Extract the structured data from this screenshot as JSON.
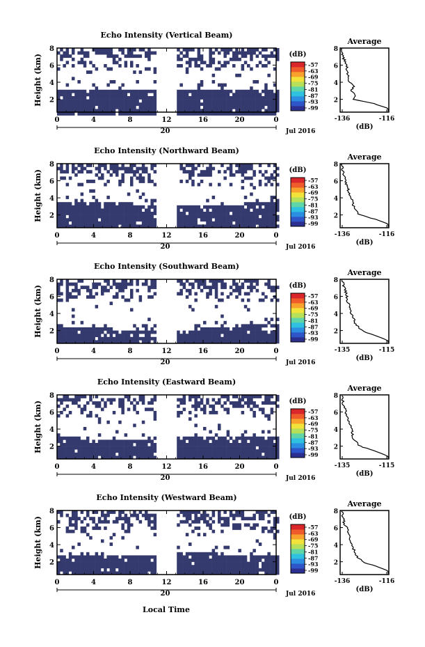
{
  "figure": {
    "xlabel_bottom": "Local Time",
    "date_label": "Jul 2016",
    "day_label": "20",
    "colorbar_unit": "(dB)",
    "colorbar_ticks": [
      "-57",
      "-63",
      "-69",
      "-75",
      "-81",
      "-87",
      "-93",
      "-99"
    ],
    "colors": {
      "dense": "#353a6e",
      "frame": "#000000",
      "colormap": [
        "#2b2f8f",
        "#2f56c8",
        "#2b8ee0",
        "#30c0e0",
        "#5fd5a8",
        "#b6e05a",
        "#f2e33a",
        "#f8a12c",
        "#ef5b2a",
        "#d8262a"
      ]
    }
  },
  "chart_data": [
    {
      "type": "heatmap",
      "title": "Echo Intensity (Vertical Beam)",
      "ylabel": "Height (km)",
      "x_ticks": [
        "0",
        "4",
        "8",
        "12",
        "16",
        "20",
        "0"
      ],
      "y_ticks": [
        "2",
        "4",
        "6",
        "8"
      ],
      "x_range_hours": [
        0,
        24
      ],
      "y_range_km": [
        0.5,
        8
      ],
      "data_gap_hours": [
        10.8,
        12.9
      ],
      "dense_layer_top_km": [
        3.2,
        3.5
      ],
      "colorbar_range_db": [
        -99,
        -57
      ],
      "profile": {
        "type": "line",
        "title": "Average",
        "xlabel": "(dB)",
        "x_ticks": [
          "-136",
          "-116"
        ],
        "y_ticks": [
          "2",
          "4",
          "6",
          "8"
        ],
        "x_range_db": [
          -136,
          -116
        ],
        "height_km": [
          0.6,
          1.0,
          1.5,
          2.0,
          2.5,
          3.0,
          3.5,
          4.0,
          4.5,
          5.0,
          5.5,
          6.0,
          6.5,
          7.0,
          7.5,
          8.0
        ],
        "db": [
          -114,
          -116,
          -122,
          -131,
          -130,
          -132,
          -131,
          -132.5,
          -133,
          -133.5,
          -134,
          -134,
          -135,
          -135.5,
          -136,
          -136
        ]
      }
    },
    {
      "type": "heatmap",
      "title": "Echo Intensity (Northward Beam)",
      "ylabel": "Height (km)",
      "x_ticks": [
        "0",
        "4",
        "8",
        "12",
        "16",
        "20",
        "0"
      ],
      "y_ticks": [
        "2",
        "4",
        "6",
        "8"
      ],
      "x_range_hours": [
        0,
        24
      ],
      "y_range_km": [
        0.5,
        8
      ],
      "data_gap_hours": [
        10.8,
        12.9
      ],
      "dense_layer_top_km": [
        3.3,
        3.7
      ],
      "colorbar_range_db": [
        -99,
        -57
      ],
      "profile": {
        "type": "line",
        "title": "Average",
        "xlabel": "(dB)",
        "x_ticks": [
          "-136",
          "-116"
        ],
        "y_ticks": [
          "2",
          "4",
          "6",
          "8"
        ],
        "x_range_db": [
          -136,
          -116
        ],
        "height_km": [
          0.6,
          1.0,
          1.5,
          2.0,
          2.5,
          3.0,
          3.5,
          4.0,
          4.5,
          5.0,
          5.5,
          6.0,
          6.5,
          7.0,
          7.5,
          8.0
        ],
        "db": [
          -114,
          -116,
          -121,
          -128,
          -130,
          -131,
          -131.5,
          -132,
          -133,
          -133.5,
          -134,
          -134.5,
          -135,
          -135.5,
          -136,
          -136
        ]
      }
    },
    {
      "type": "heatmap",
      "title": "Echo Intensity (Southward Beam)",
      "ylabel": "Height (km)",
      "x_ticks": [
        "0",
        "4",
        "8",
        "12",
        "16",
        "20",
        "0"
      ],
      "y_ticks": [
        "2",
        "4",
        "6",
        "8"
      ],
      "x_range_hours": [
        0,
        24
      ],
      "y_range_km": [
        0.5,
        8
      ],
      "data_gap_hours": [
        10.8,
        12.9
      ],
      "dense_layer_top_km": [
        2.2,
        2.8
      ],
      "colorbar_range_db": [
        -99,
        -57
      ],
      "profile": {
        "type": "line",
        "title": "Average",
        "xlabel": "(dB)",
        "x_ticks": [
          "-135",
          "-115"
        ],
        "y_ticks": [
          "2",
          "4",
          "6",
          "8"
        ],
        "x_range_db": [
          -135,
          -115
        ],
        "height_km": [
          0.6,
          1.0,
          1.5,
          2.0,
          2.5,
          3.0,
          3.5,
          4.0,
          4.5,
          5.0,
          5.5,
          6.0,
          6.5,
          7.0,
          7.5,
          8.0
        ],
        "db": [
          -113,
          -116,
          -121,
          -126,
          -128,
          -129.5,
          -130,
          -131,
          -131.5,
          -132,
          -132.5,
          -133,
          -133.5,
          -134,
          -134.5,
          -135
        ]
      }
    },
    {
      "type": "heatmap",
      "title": "Echo Intensity (Eastward Beam)",
      "ylabel": "Height (km)",
      "x_ticks": [
        "0",
        "4",
        "8",
        "12",
        "16",
        "20",
        "0"
      ],
      "y_ticks": [
        "2",
        "4",
        "6",
        "8"
      ],
      "x_range_hours": [
        0,
        24
      ],
      "y_range_km": [
        0.5,
        8
      ],
      "data_gap_hours": [
        10.8,
        12.9
      ],
      "dense_layer_top_km": [
        3.0,
        3.4
      ],
      "colorbar_range_db": [
        -99,
        -57
      ],
      "profile": {
        "type": "line",
        "title": "Average",
        "xlabel": "(dB)",
        "x_ticks": [
          "-135",
          "-115"
        ],
        "y_ticks": [
          "2",
          "4",
          "6",
          "8"
        ],
        "x_range_db": [
          -135,
          -115
        ],
        "height_km": [
          0.6,
          1.0,
          1.5,
          2.0,
          2.5,
          3.0,
          3.5,
          4.0,
          4.5,
          5.0,
          5.5,
          6.0,
          6.5,
          7.0,
          7.5,
          8.0
        ],
        "db": [
          -113,
          -116,
          -121,
          -127,
          -129,
          -130,
          -130.5,
          -131,
          -131.5,
          -132,
          -133,
          -133.5,
          -134,
          -134.5,
          -135,
          -135
        ]
      }
    },
    {
      "type": "heatmap",
      "title": "Echo Intensity (Westward Beam)",
      "ylabel": "Height (km)",
      "x_ticks": [
        "0",
        "4",
        "8",
        "12",
        "16",
        "20",
        "0"
      ],
      "y_ticks": [
        "2",
        "4",
        "6",
        "8"
      ],
      "x_range_hours": [
        0,
        24
      ],
      "y_range_km": [
        0.5,
        8
      ],
      "data_gap_hours": [
        10.8,
        12.9
      ],
      "dense_layer_top_km": [
        2.8,
        3.2
      ],
      "colorbar_range_db": [
        -99,
        -57
      ],
      "profile": {
        "type": "line",
        "title": "Average",
        "xlabel": "(dB)",
        "x_ticks": [
          "-136",
          "-116"
        ],
        "y_ticks": [
          "2",
          "4",
          "6",
          "8"
        ],
        "x_range_db": [
          -136,
          -116
        ],
        "height_km": [
          0.6,
          1.0,
          1.5,
          2.0,
          2.5,
          3.0,
          3.5,
          4.0,
          4.5,
          5.0,
          5.5,
          6.0,
          6.5,
          7.0,
          7.5,
          8.0
        ],
        "db": [
          -114,
          -116,
          -121,
          -127,
          -129,
          -130,
          -131,
          -131.5,
          -132,
          -133,
          -133.5,
          -134,
          -135,
          -135.5,
          -136,
          -136
        ]
      }
    }
  ]
}
